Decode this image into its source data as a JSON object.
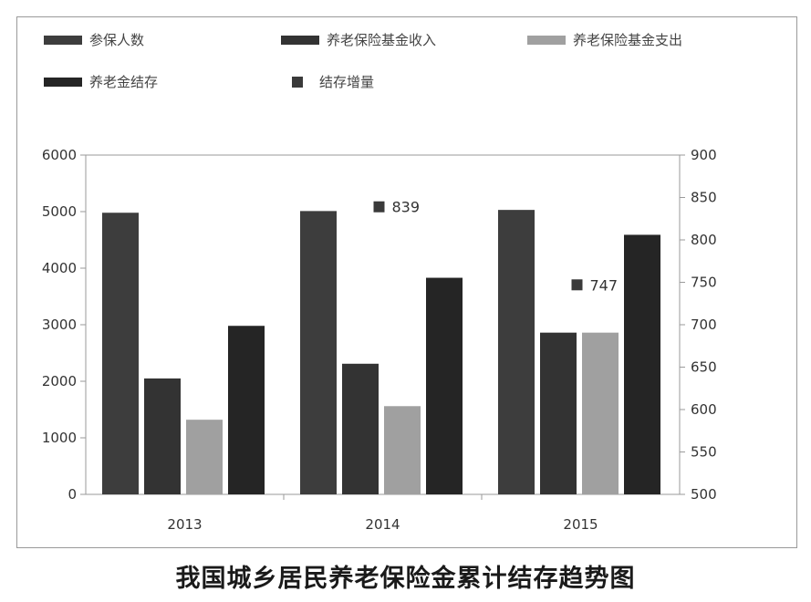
{
  "caption": "我国城乡居民养老保险金累计结存趋势图",
  "chart_data": {
    "type": "bar",
    "categories": [
      "2013",
      "2014",
      "2015"
    ],
    "y_left": {
      "min": 0,
      "max": 6000,
      "ticks": [
        0,
        1000,
        2000,
        3000,
        4000,
        5000,
        6000
      ]
    },
    "y_right": {
      "min": 500,
      "max": 900,
      "ticks": [
        500,
        550,
        600,
        650,
        700,
        750,
        800,
        850,
        900
      ]
    },
    "series": [
      {
        "name": "参保人数",
        "axis": "left",
        "color": "#3d3d3d",
        "values": [
          4980,
          5010,
          5030
        ]
      },
      {
        "name": "养老保险基金收入",
        "axis": "left",
        "color": "#333333",
        "values": [
          2050,
          2310,
          2860
        ]
      },
      {
        "name": "养老保险基金支出",
        "axis": "left",
        "color": "#a0a0a0",
        "values": [
          1320,
          1560,
          2860
        ]
      },
      {
        "name": "养老金结存",
        "axis": "left",
        "color": "#252525",
        "values": [
          2980,
          3830,
          4590
        ]
      }
    ],
    "growth": {
      "name": "结存增量",
      "axis": "right",
      "color": "#3a3a3a",
      "points": [
        {
          "category": "2014",
          "value": 839,
          "label": "839"
        },
        {
          "category": "2015",
          "value": 747,
          "label": "747"
        }
      ]
    },
    "legend_position": "top",
    "grid": false
  }
}
